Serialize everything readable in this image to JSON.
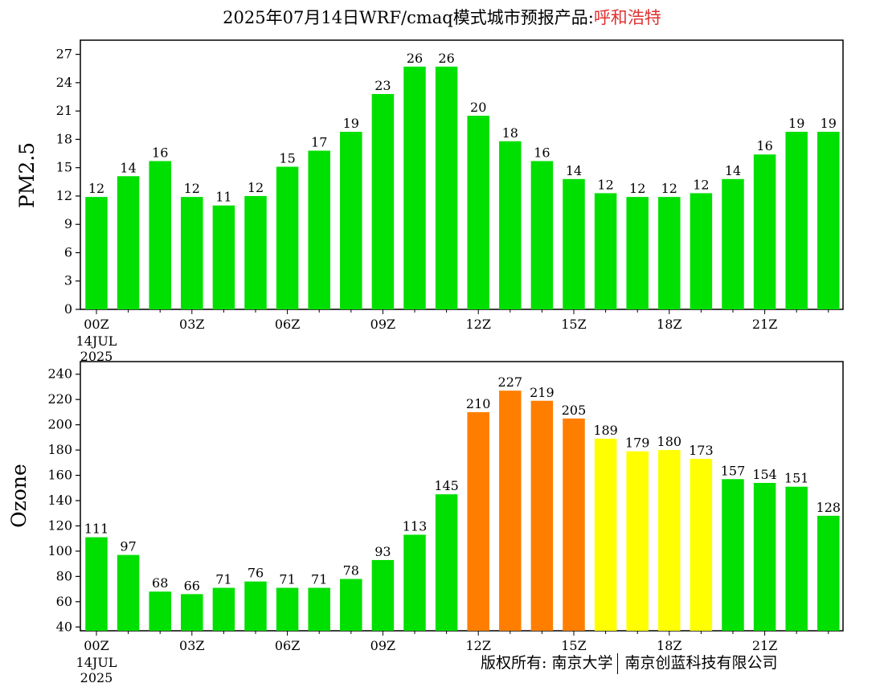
{
  "header": {
    "title_prefix": "2025年07月14日WRF/cmaq模式城市预报产品:",
    "city": "呼和浩特"
  },
  "footer": {
    "copyright_left": "版权所有: 南京大学",
    "copyright_right": "南京创蓝科技有限公司"
  },
  "colors": {
    "green": "#00e000",
    "orange": "#ff7e00",
    "yellow": "#ffff00",
    "title_city": "#e03030"
  },
  "chart_data": [
    {
      "type": "bar",
      "ylabel": "PM2.5",
      "ylim": [
        0,
        28.5
      ],
      "yticks": [
        0,
        3,
        6,
        9,
        12,
        15,
        18,
        21,
        24,
        27
      ],
      "xtick_labels": [
        "00Z",
        "03Z",
        "06Z",
        "09Z",
        "12Z",
        "15Z",
        "18Z",
        "21Z"
      ],
      "date_label": [
        "14JUL",
        "2025"
      ],
      "values": [
        12,
        14,
        16,
        12,
        11,
        12,
        15,
        17,
        19,
        23,
        26,
        26,
        20,
        18,
        16,
        14,
        12,
        12,
        12,
        12,
        14,
        16,
        19,
        19
      ],
      "bar_heights": [
        11.9,
        14.1,
        15.7,
        11.9,
        11.0,
        12.0,
        15.1,
        16.8,
        18.8,
        22.8,
        25.7,
        25.7,
        20.5,
        17.8,
        15.7,
        13.8,
        12.3,
        11.9,
        11.9,
        12.3,
        13.8,
        16.4,
        18.8,
        18.8
      ],
      "bar_colors": [
        "green",
        "green",
        "green",
        "green",
        "green",
        "green",
        "green",
        "green",
        "green",
        "green",
        "green",
        "green",
        "green",
        "green",
        "green",
        "green",
        "green",
        "green",
        "green",
        "green",
        "green",
        "green",
        "green",
        "green"
      ]
    },
    {
      "type": "bar",
      "ylabel": "Ozone",
      "ylim": [
        37,
        250
      ],
      "yticks": [
        40,
        60,
        80,
        100,
        120,
        140,
        160,
        180,
        200,
        220,
        240
      ],
      "xtick_labels": [
        "00Z",
        "03Z",
        "06Z",
        "09Z",
        "12Z",
        "15Z",
        "18Z",
        "21Z"
      ],
      "date_label": [
        "14JUL",
        "2025"
      ],
      "values": [
        111,
        97,
        68,
        66,
        71,
        76,
        71,
        71,
        78,
        93,
        113,
        145,
        210,
        227,
        219,
        205,
        189,
        179,
        180,
        173,
        157,
        154,
        151,
        128
      ],
      "bar_colors": [
        "green",
        "green",
        "green",
        "green",
        "green",
        "green",
        "green",
        "green",
        "green",
        "green",
        "green",
        "green",
        "orange",
        "orange",
        "orange",
        "orange",
        "yellow",
        "yellow",
        "yellow",
        "yellow",
        "green",
        "green",
        "green",
        "green"
      ]
    }
  ]
}
